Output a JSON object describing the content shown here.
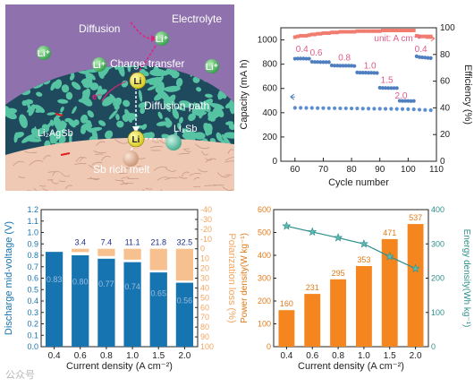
{
  "schematic": {
    "electrolyte": "Electrolyte",
    "diffusion": "Diffusion",
    "charge_transfer": "Charge transfer",
    "diffusion_path": "Diffusion path",
    "li_agsb": "Li₂AgSb",
    "li3sb": "Li₃Sb",
    "sb_rich_melt": "Sb rich melt",
    "li_plus": "Li⁺",
    "li": "Li",
    "e_minus": "e⁻",
    "colors": {
      "electrolyte_bg": "#8e71ad",
      "melt": "#efc9b4",
      "porous": "#56c4a2",
      "li_ion": "#2f9b46",
      "li_atom": "#e7df28"
    }
  },
  "watermark": "公众号",
  "chart_data": [
    {
      "type": "scatter",
      "id": "cycling",
      "xlabel": "Cycle number",
      "ylabel": "Capacity (mA h)",
      "y2label": "Efficiency (%)",
      "xlim": [
        55,
        110
      ],
      "ylim": [
        0,
        1100
      ],
      "y2lim": [
        0,
        100
      ],
      "xticks": [
        60,
        70,
        80,
        90,
        100,
        110
      ],
      "yticks": [
        0,
        200,
        400,
        600,
        800,
        1000
      ],
      "y2ticks": [
        0,
        20,
        40,
        60,
        80,
        100
      ],
      "annotation": "unit: A cm⁻²",
      "colors": {
        "capacity": "#4f7fc0",
        "efficiency": "#f07d70",
        "low": "#5b8ed0"
      },
      "rate_labels": [
        {
          "text": "0.4",
          "x": 62.5,
          "y": 900
        },
        {
          "text": "0.6",
          "x": 67.5,
          "y": 870
        },
        {
          "text": "0.8",
          "x": 77.5,
          "y": 830
        },
        {
          "text": "1.0",
          "x": 86.5,
          "y": 765
        },
        {
          "text": "1.5",
          "x": 92.5,
          "y": 645
        },
        {
          "text": "2.0",
          "x": 97.5,
          "y": 515
        },
        {
          "text": "0.4",
          "x": 104.5,
          "y": 900
        }
      ],
      "series": [
        {
          "name": "Capacity",
          "x": [
            60,
            61,
            62,
            63,
            64,
            65,
            66,
            67,
            68,
            69,
            70,
            71,
            72,
            73,
            74,
            75,
            76,
            77,
            78,
            79,
            80,
            81,
            82,
            83,
            84,
            85,
            86,
            87,
            88,
            89,
            90,
            91,
            92,
            93,
            94,
            95,
            96,
            97,
            98,
            99,
            100,
            101,
            102,
            103,
            104,
            105,
            106,
            107,
            108
          ],
          "values": [
            845,
            846,
            846,
            846,
            845,
            845,
            820,
            818,
            818,
            817,
            817,
            817,
            817,
            790,
            788,
            788,
            787,
            787,
            787,
            787,
            787,
            785,
            732,
            730,
            730,
            730,
            729,
            729,
            728,
            727,
            606,
            604,
            604,
            603,
            603,
            603,
            603,
            498,
            497,
            497,
            497,
            496,
            497,
            865,
            858,
            856,
            854,
            852,
            850
          ]
        },
        {
          "name": "Capacity low",
          "x": [
            60,
            62,
            64,
            66,
            68,
            70,
            72,
            74,
            76,
            78,
            80,
            82,
            84,
            86,
            88,
            90,
            92,
            94,
            96,
            98,
            100,
            102,
            104,
            106,
            108
          ],
          "values": [
            440,
            440,
            439,
            439,
            438,
            438,
            437,
            437,
            436,
            436,
            435,
            435,
            434,
            434,
            433,
            433,
            432,
            432,
            431,
            430,
            429,
            428,
            425,
            423,
            421
          ]
        },
        {
          "name": "Efficiency",
          "x": [
            60,
            61,
            62,
            63,
            64,
            65,
            66,
            67,
            68,
            69,
            70,
            71,
            72,
            73,
            74,
            75,
            76,
            77,
            78,
            79,
            80,
            81,
            82,
            83,
            84,
            85,
            86,
            87,
            88,
            89,
            90,
            91,
            92,
            93,
            94,
            95,
            96,
            97,
            98,
            99,
            100,
            101,
            102,
            103,
            104,
            105,
            106,
            107,
            108
          ],
          "values": [
            93,
            93.5,
            94,
            94,
            94,
            94.5,
            95,
            95,
            95.5,
            95.5,
            96,
            96,
            96,
            96.5,
            96.5,
            96.5,
            97,
            97,
            97,
            97,
            97,
            97,
            97.5,
            97.5,
            97.5,
            97.5,
            97.5,
            97.5,
            97.5,
            97.5,
            97.5,
            98,
            98,
            98,
            98,
            98,
            98,
            98,
            98,
            98,
            98,
            98,
            98,
            94,
            93.5,
            93.5,
            93.5,
            93.5,
            93.5
          ]
        }
      ]
    },
    {
      "type": "bar",
      "id": "voltage",
      "categories": [
        "0.4",
        "0.6",
        "0.8",
        "1.0",
        "1.5",
        "2.0"
      ],
      "values": [
        0.83,
        0.8,
        0.77,
        0.74,
        0.65,
        0.56
      ],
      "value_labels": [
        "0.83",
        "0.80",
        "0.77",
        "0.74",
        "0.65",
        "0.56"
      ],
      "loss_values": [
        0,
        3.4,
        7.4,
        11.1,
        21.8,
        32.5
      ],
      "loss_labels": [
        "",
        "3.4",
        "7.4",
        "11.1",
        "21.8",
        "32.5"
      ],
      "xlabel": "Current density (A cm⁻²)",
      "ylabel": "Discharge mid-voltage (V)",
      "y2label": "Polarization loss (%)",
      "ylim": [
        0,
        1.2
      ],
      "y2lim": [
        -40,
        100
      ],
      "yticks": [
        "0.0",
        "0.1",
        "0.2",
        "0.3",
        "0.4",
        "0.5",
        "0.6",
        "0.7",
        "0.8",
        "0.9",
        "1.0",
        "1.1",
        "1.2"
      ],
      "y2ticks": [
        "-40",
        "-30",
        "-20",
        "-10",
        "0",
        "10",
        "20",
        "30",
        "40",
        "50",
        "60",
        "70",
        "80",
        "90",
        "100"
      ],
      "colors": {
        "bar": "#1674b1",
        "loss": "#f6b67b",
        "axis_left": "#1674b1",
        "axis_right": "#f0a662",
        "top_label": "#1d2e86"
      }
    },
    {
      "type": "bar",
      "id": "power",
      "categories": [
        "0.4",
        "0.6",
        "0.8",
        "1.0",
        "1.5",
        "2.0"
      ],
      "values": [
        160,
        231,
        295,
        353,
        471,
        537
      ],
      "value_labels": [
        "160",
        "231",
        "295",
        "353",
        "471",
        "537"
      ],
      "energy": [
        352,
        335,
        318,
        300,
        263,
        228
      ],
      "xlabel": "Current density (A cm⁻²)",
      "ylabel": "Power density(W kg⁻¹)",
      "y2label": "Energy density(Wh kg⁻¹)",
      "ylim": [
        0,
        600
      ],
      "y2lim": [
        0,
        400
      ],
      "yticks": [
        "0",
        "100",
        "200",
        "300",
        "400",
        "500",
        "600"
      ],
      "y2ticks": [
        "0",
        "100",
        "200",
        "300",
        "400"
      ],
      "colors": {
        "bar": "#f5861f",
        "line": "#2d8f8c",
        "axis_left": "#e07b18",
        "axis_right": "#2d8f8c"
      }
    }
  ]
}
